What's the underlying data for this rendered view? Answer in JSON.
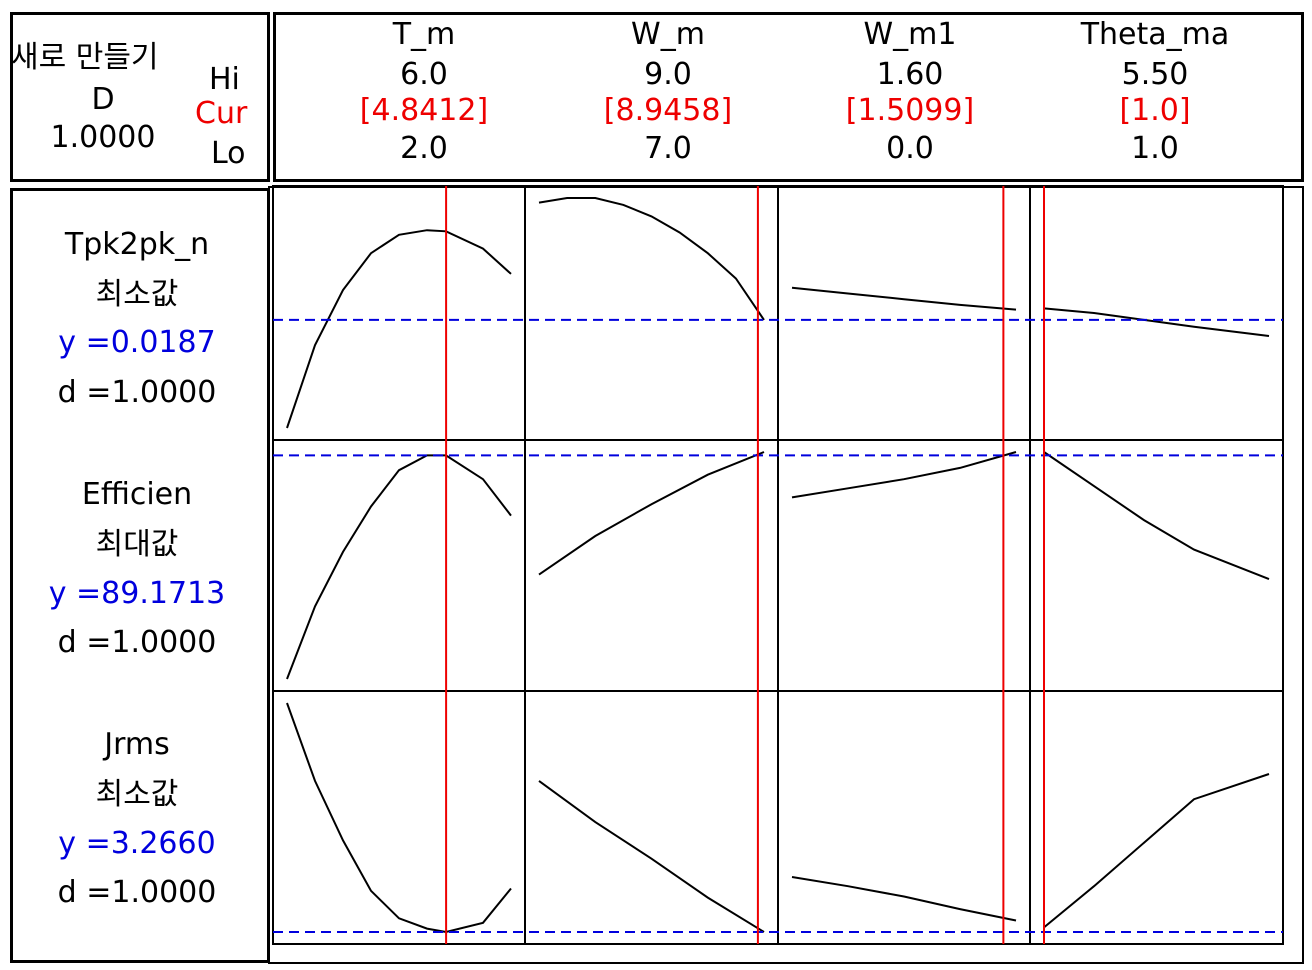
{
  "composite": {
    "title": "새로 만들기",
    "d_label": "D",
    "d_value": "1.0000",
    "hi_label": "Hi",
    "cur_label": "Cur",
    "lo_label": "Lo"
  },
  "factors": [
    {
      "name": "T_m",
      "hi": "6.0",
      "cur": "[4.8412]",
      "lo": "2.0"
    },
    {
      "name": "W_m",
      "hi": "9.0",
      "cur": "[8.9458]",
      "lo": "7.0"
    },
    {
      "name": "W_m1",
      "hi": "1.60",
      "cur": "[1.5099]",
      "lo": "0.0"
    },
    {
      "name": "Theta_ma",
      "hi": "5.50",
      "cur": "[1.0]",
      "lo": "1.0"
    }
  ],
  "responses": [
    {
      "name": "Tpk2pk_n",
      "goal": "최소값",
      "y": "y =0.0187",
      "d": "d =1.0000"
    },
    {
      "name": "Efficien",
      "goal": "최대값",
      "y": "y =89.1713",
      "d": "d =1.0000"
    },
    {
      "name": "Jrms",
      "goal": "최소값",
      "y": "y =3.2660",
      "d": "d =1.0000"
    }
  ],
  "colors": {
    "current_line": "#ee0000",
    "response_line": "#0000dd",
    "curve": "#000000"
  },
  "chart_data": {
    "type": "line",
    "factor_ranges": [
      [
        2.0,
        6.0
      ],
      [
        7.0,
        9.0
      ],
      [
        0.0,
        1.6
      ],
      [
        1.0,
        5.5
      ]
    ],
    "current_settings": [
      4.8412,
      8.9458,
      1.5099,
      1.0
    ],
    "grid": false,
    "panels": [
      [
        {
          "x": [
            2.0,
            2.5,
            3.0,
            3.5,
            4.0,
            4.5,
            4.84,
            5.5,
            6.0
          ],
          "y": [
            0.0,
            0.36,
            0.6,
            0.76,
            0.84,
            0.86,
            0.855,
            0.78,
            0.67
          ]
        },
        {
          "x": [
            7.0,
            7.25,
            7.5,
            7.75,
            8.0,
            8.25,
            8.5,
            8.75,
            9.0
          ],
          "y": [
            0.98,
            1.0,
            1.0,
            0.97,
            0.92,
            0.85,
            0.76,
            0.65,
            0.47
          ]
        },
        {
          "x": [
            0.0,
            0.4,
            0.8,
            1.2,
            1.6
          ],
          "y": [
            0.61,
            0.585,
            0.56,
            0.535,
            0.515
          ]
        },
        {
          "x": [
            1.0,
            2.0,
            3.0,
            4.0,
            5.5
          ],
          "y": [
            0.52,
            0.5,
            0.47,
            0.44,
            0.4
          ]
        }
      ],
      [
        {
          "x": [
            2.0,
            2.5,
            3.0,
            3.5,
            4.0,
            4.5,
            4.84,
            5.5,
            6.0
          ],
          "y": [
            0.0,
            0.32,
            0.56,
            0.76,
            0.92,
            0.985,
            0.985,
            0.88,
            0.72
          ]
        },
        {
          "x": [
            7.0,
            7.5,
            8.0,
            8.5,
            9.0
          ],
          "y": [
            0.46,
            0.63,
            0.77,
            0.9,
            1.0
          ]
        },
        {
          "x": [
            0.0,
            0.4,
            0.8,
            1.2,
            1.6
          ],
          "y": [
            0.8,
            0.84,
            0.88,
            0.93,
            1.0
          ]
        },
        {
          "x": [
            1.0,
            2.0,
            3.0,
            4.0,
            5.5
          ],
          "y": [
            1.0,
            0.85,
            0.7,
            0.57,
            0.44
          ]
        }
      ],
      [
        {
          "x": [
            2.0,
            2.5,
            3.0,
            3.5,
            4.0,
            4.5,
            4.84,
            5.5,
            6.0
          ],
          "y": [
            1.0,
            0.66,
            0.4,
            0.18,
            0.06,
            0.015,
            0.0,
            0.04,
            0.19
          ]
        },
        {
          "x": [
            7.0,
            7.5,
            8.0,
            8.5,
            9.0
          ],
          "y": [
            0.66,
            0.48,
            0.32,
            0.15,
            0.0
          ]
        },
        {
          "x": [
            0.0,
            0.4,
            0.8,
            1.2,
            1.6
          ],
          "y": [
            0.24,
            0.2,
            0.155,
            0.1,
            0.05
          ]
        },
        {
          "x": [
            1.0,
            2.0,
            3.0,
            4.0,
            5.5
          ],
          "y": [
            0.02,
            0.2,
            0.39,
            0.58,
            0.69
          ]
        }
      ]
    ],
    "response_levels": [
      0.47,
      0.985,
      0.0
    ]
  }
}
